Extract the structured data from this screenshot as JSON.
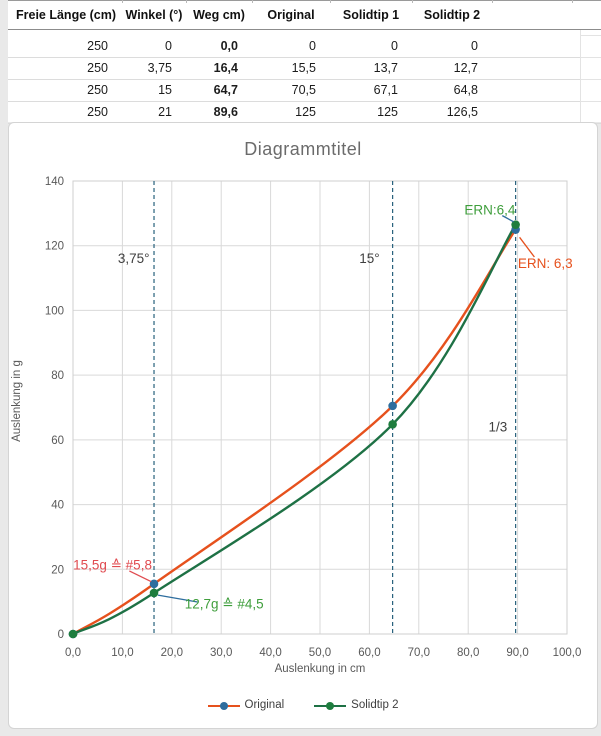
{
  "table": {
    "headers": [
      "Freie Länge (cm)",
      "Winkel (°)",
      "Weg cm)",
      "Original",
      "Solidtip 1",
      "Solidtip 2"
    ],
    "rows": [
      [
        "250",
        "0",
        "0,0",
        "0",
        "0",
        "0"
      ],
      [
        "250",
        "3,75",
        "16,4",
        "15,5",
        "13,7",
        "12,7"
      ],
      [
        "250",
        "15",
        "64,7",
        "70,5",
        "67,1",
        "64,8"
      ],
      [
        "250",
        "21",
        "89,6",
        "125",
        "125",
        "126,5"
      ]
    ],
    "bold_column_index": 2
  },
  "chart_data": {
    "type": "line",
    "title": "Diagrammtitel",
    "xlabel": "Auslenkung in cm",
    "ylabel": "Auslenkung in g",
    "xlim": [
      0,
      100
    ],
    "ylim": [
      0,
      140
    ],
    "grid": true,
    "legend_position": "bottom",
    "x_ticks": [
      {
        "value": 0,
        "label": "0,0"
      },
      {
        "value": 10,
        "label": "10,0"
      },
      {
        "value": 20,
        "label": "20,0"
      },
      {
        "value": 30,
        "label": "30,0"
      },
      {
        "value": 40,
        "label": "40,0"
      },
      {
        "value": 50,
        "label": "50,0"
      },
      {
        "value": 60,
        "label": "60,0"
      },
      {
        "value": 70,
        "label": "70,0"
      },
      {
        "value": 80,
        "label": "80,0"
      },
      {
        "value": 90,
        "label": "90,0"
      },
      {
        "value": 100,
        "label": "100,0"
      }
    ],
    "y_ticks": [
      {
        "value": 0,
        "label": "0"
      },
      {
        "value": 20,
        "label": "20"
      },
      {
        "value": 40,
        "label": "40"
      },
      {
        "value": 60,
        "label": "60"
      },
      {
        "value": 80,
        "label": "80"
      },
      {
        "value": 100,
        "label": "100"
      },
      {
        "value": 120,
        "label": "120"
      },
      {
        "value": 140,
        "label": "140"
      }
    ],
    "x": [
      0,
      16.4,
      64.7,
      89.6
    ],
    "series": [
      {
        "name": "Original",
        "values": [
          0,
          15.5,
          70.5,
          125
        ],
        "line_color": "#e6511d",
        "marker_color": "#2d6d9e"
      },
      {
        "name": "Solidtip 2",
        "values": [
          0,
          12.7,
          64.8,
          126.5
        ],
        "line_color": "#1e7145",
        "marker_color": "#1e7d3e"
      }
    ],
    "reference_lines": {
      "x_values": [
        16.4,
        64.7,
        89.6
      ],
      "color": "#27617c",
      "style": "dashed"
    },
    "annotations": [
      {
        "text": "3,75°",
        "x": 12.3,
        "y": 116,
        "color": "#3f3f3f"
      },
      {
        "text": "15°",
        "x": 60,
        "y": 116,
        "color": "#3f3f3f"
      },
      {
        "text": "1/3",
        "x": 86,
        "y": 64,
        "color": "#3f3f3f"
      },
      {
        "text": "ERN:6,4",
        "x": 84.4,
        "y": 131,
        "color": "#3f9e3c",
        "leader": {
          "x1": 86.9,
          "y1": 129.3,
          "x2": 89.2,
          "y2": 127.4,
          "color": "#2d6d9e"
        }
      },
      {
        "text": "ERN: 6,3",
        "x": 95.6,
        "y": 114.5,
        "color": "#e6511d",
        "leader": {
          "x1": 93.4,
          "y1": 116.5,
          "x2": 90.4,
          "y2": 122.6,
          "color": "#e6511d"
        }
      },
      {
        "text": "15,5g ≙ #5,8",
        "x": 8,
        "y": 21.3,
        "color": "#e04b50",
        "leader": {
          "x1": 11.4,
          "y1": 19.5,
          "x2": 15.8,
          "y2": 16.2,
          "color": "#e04b50"
        }
      },
      {
        "text": "12,7g ≙ #4,5",
        "x": 30.6,
        "y": 9.3,
        "color": "#3f9e3c",
        "leader": {
          "x1": 17.2,
          "y1": 12,
          "x2": 25.2,
          "y2": 9.9,
          "color": "#2d6d9e"
        }
      }
    ]
  }
}
